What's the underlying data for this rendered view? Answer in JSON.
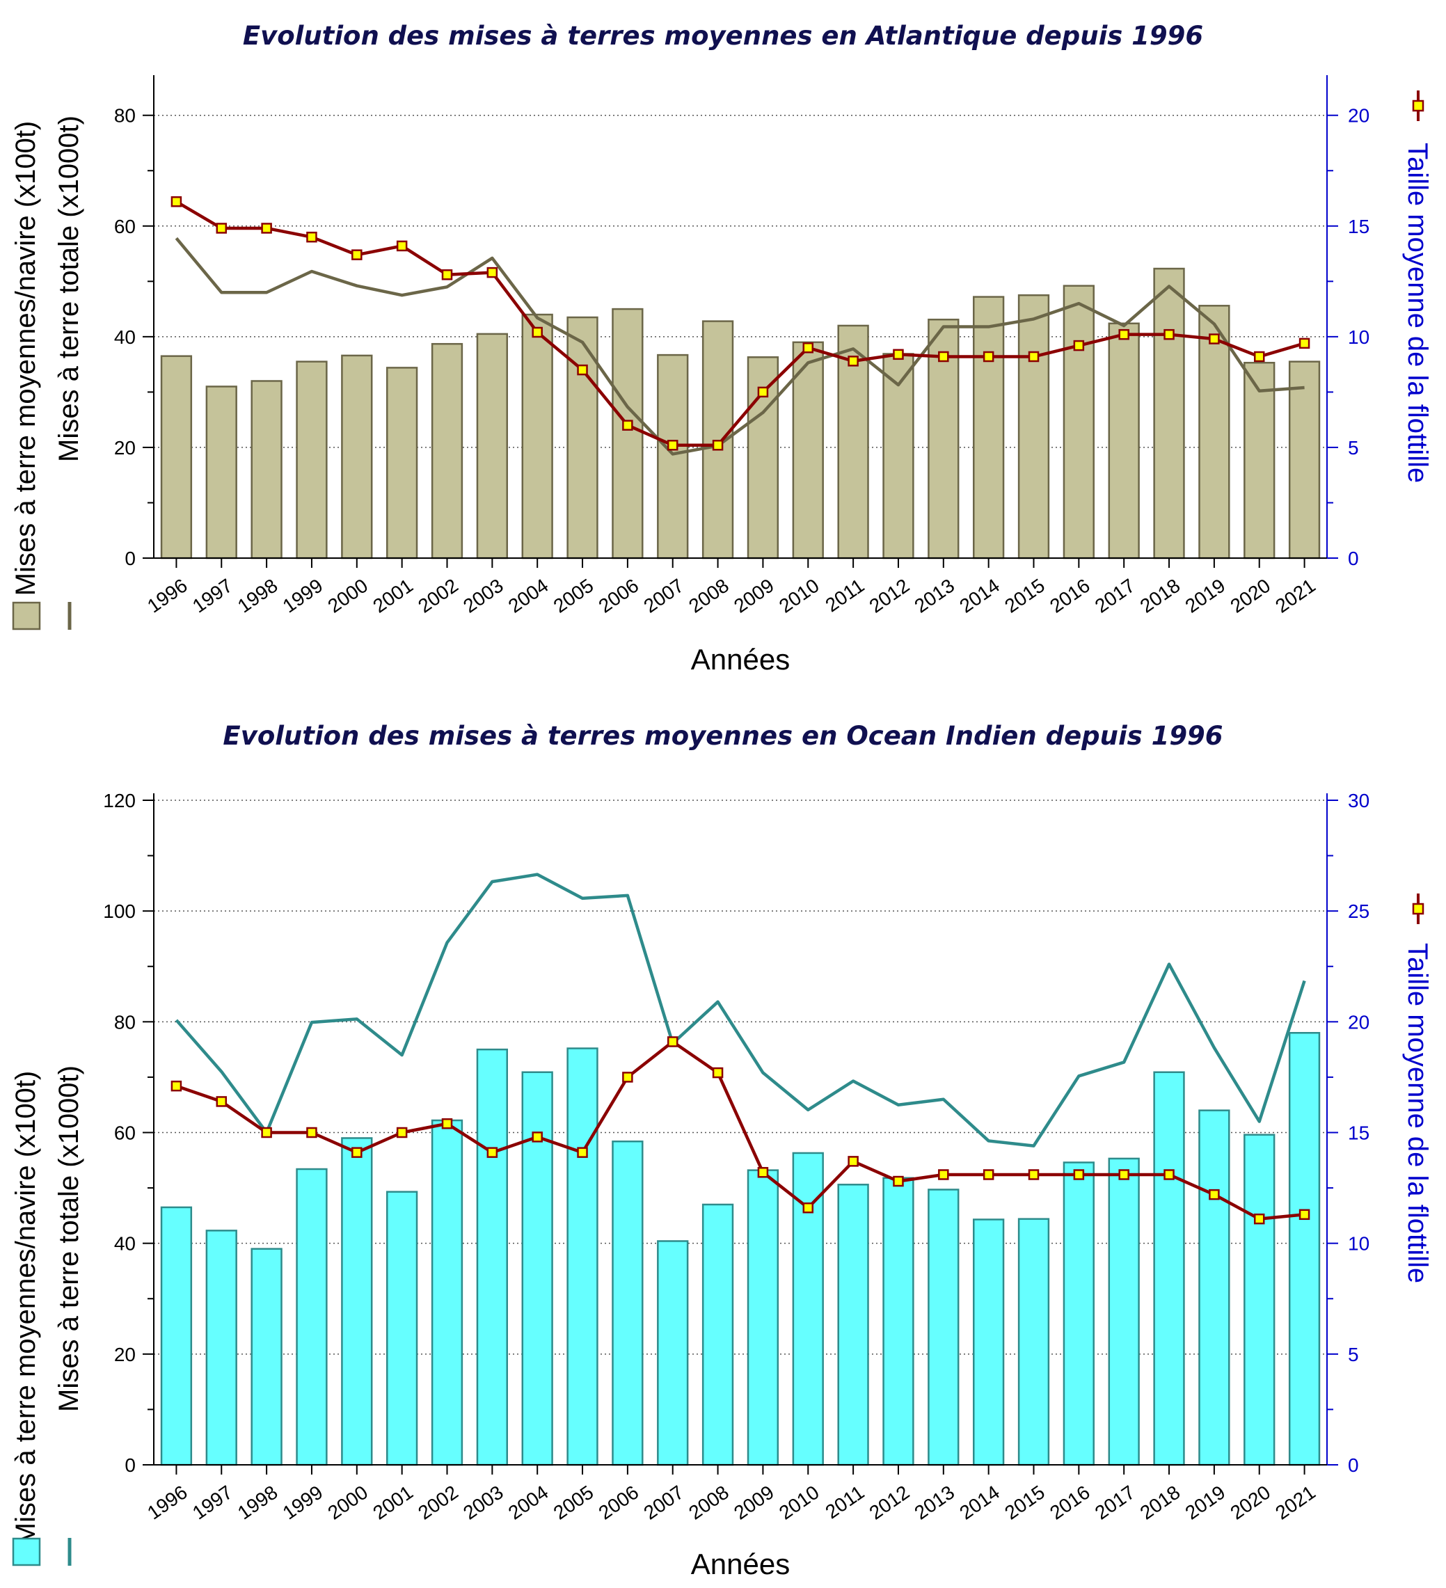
{
  "chart_data": [
    {
      "id": "atlantique",
      "type": "bar",
      "title": "Evolution des mises à terres moyennes en Atlantique depuis 1996",
      "xlabel": "Années",
      "ylabel_left_bars": "Mises à terre moyennes/navire (x100t)",
      "ylabel_left_line": "Mises à terre totale (x1000t)",
      "ylabel_right": "Taille moyenne de la flottille",
      "ylim_left": [
        0,
        86
      ],
      "ylim_right": [
        0,
        21.5
      ],
      "yticks_left": [
        0,
        20,
        40,
        60,
        80
      ],
      "yticks_right": [
        0,
        5,
        10,
        15,
        20
      ],
      "grid": true,
      "colors": {
        "bar_fill": "#c5c39a",
        "bar_stroke": "#6b6648",
        "total_line": "#6b6648",
        "fleet_line": "#8b0000",
        "fleet_marker": "#ffff00",
        "right_axis": "#0000cc"
      },
      "categories": [
        "1996",
        "1997",
        "1998",
        "1999",
        "2000",
        "2001",
        "2002",
        "2003",
        "2004",
        "2005",
        "2006",
        "2007",
        "2008",
        "2009",
        "2010",
        "2011",
        "2012",
        "2013",
        "2014",
        "2015",
        "2016",
        "2017",
        "2018",
        "2019",
        "2020",
        "2021"
      ],
      "series": [
        {
          "name": "Mises à terre moyennes/navire (x100t)",
          "kind": "bar",
          "axis": "left",
          "values": [
            36.5,
            31,
            32,
            35.5,
            36.6,
            34.4,
            38.7,
            40.5,
            44,
            43.5,
            45,
            36.7,
            42.8,
            36.3,
            39,
            42,
            36.9,
            43.1,
            47.2,
            47.5,
            49.2,
            42.4,
            52.3,
            45.6,
            35.3,
            35.5
          ]
        },
        {
          "name": "Mises à terre totale (x1000t)",
          "kind": "line",
          "axis": "left",
          "values": [
            57.8,
            48,
            48,
            51.8,
            49.2,
            47.5,
            49,
            54.2,
            43.4,
            39,
            27.3,
            18.8,
            20.3,
            26.3,
            35.3,
            37.8,
            31.3,
            41.8,
            41.8,
            43.2,
            46,
            42,
            49.1,
            42.3,
            30.2,
            30.8
          ]
        },
        {
          "name": "Taille moyenne de la flottille",
          "kind": "line-marker",
          "axis": "right",
          "values": [
            16.1,
            14.9,
            14.9,
            14.5,
            13.7,
            14.1,
            12.8,
            12.9,
            10.2,
            8.5,
            6,
            5.1,
            5.1,
            7.5,
            9.5,
            8.9,
            9.2,
            9.1,
            9.1,
            9.1,
            9.6,
            10.1,
            10.1,
            9.9,
            9.1,
            9.7
          ]
        }
      ]
    },
    {
      "id": "ocean-indien",
      "type": "bar",
      "title": "Evolution des mises à terres moyennes en Ocean Indien depuis 1996",
      "xlabel": "Années",
      "ylabel_left_bars": "Mises à terre moyennes/navire (x100t)",
      "ylabel_left_line": "Mises à terre totale (x1000t)",
      "ylabel_right": "Taille moyenne de la flottille",
      "ylim_left": [
        0,
        120
      ],
      "ylim_right": [
        0,
        30
      ],
      "yticks_left": [
        0,
        20,
        40,
        60,
        80,
        100,
        120
      ],
      "yticks_right": [
        0,
        5,
        10,
        15,
        20,
        25,
        30
      ],
      "grid": true,
      "colors": {
        "bar_fill": "#66ffff",
        "bar_stroke": "#2e8b8b",
        "total_line": "#2e8b8b",
        "fleet_line": "#8b0000",
        "fleet_marker": "#ffff00",
        "right_axis": "#0000cc"
      },
      "categories": [
        "1996",
        "1997",
        "1998",
        "1999",
        "2000",
        "2001",
        "2002",
        "2003",
        "2004",
        "2005",
        "2006",
        "2007",
        "2008",
        "2009",
        "2010",
        "2011",
        "2012",
        "2013",
        "2014",
        "2015",
        "2016",
        "2017",
        "2018",
        "2019",
        "2020",
        "2021"
      ],
      "series": [
        {
          "name": "Mises à terre moyennes/navire (x100t)",
          "kind": "bar",
          "axis": "left",
          "values": [
            46.5,
            42.3,
            39,
            53.4,
            59,
            49.3,
            62.2,
            75,
            70.9,
            75.2,
            58.4,
            40.4,
            47,
            53.2,
            56.3,
            50.6,
            51.8,
            49.7,
            44.3,
            44.4,
            54.6,
            55.3,
            70.9,
            64,
            59.6,
            78
          ]
        },
        {
          "name": "Mises à terre totale (x1000t)",
          "kind": "line",
          "axis": "left",
          "values": [
            80.3,
            71,
            60,
            79.9,
            80.5,
            74,
            94.3,
            105.3,
            106.6,
            102.3,
            102.8,
            76.1,
            83.6,
            70.8,
            64.1,
            69.3,
            65,
            66,
            58.5,
            57.6,
            70.2,
            72.7,
            90.4,
            75.3,
            62,
            87.4
          ]
        },
        {
          "name": "Taille moyenne de la flottille",
          "kind": "line-marker",
          "axis": "right",
          "values": [
            17.1,
            16.4,
            15,
            15,
            14.1,
            15,
            15.4,
            14.1,
            14.8,
            14.1,
            17.5,
            19.1,
            17.7,
            13.2,
            11.6,
            13.7,
            12.8,
            13.1,
            13.1,
            13.1,
            13.1,
            13.1,
            13.1,
            12.2,
            11.1,
            11.3
          ]
        }
      ]
    }
  ]
}
